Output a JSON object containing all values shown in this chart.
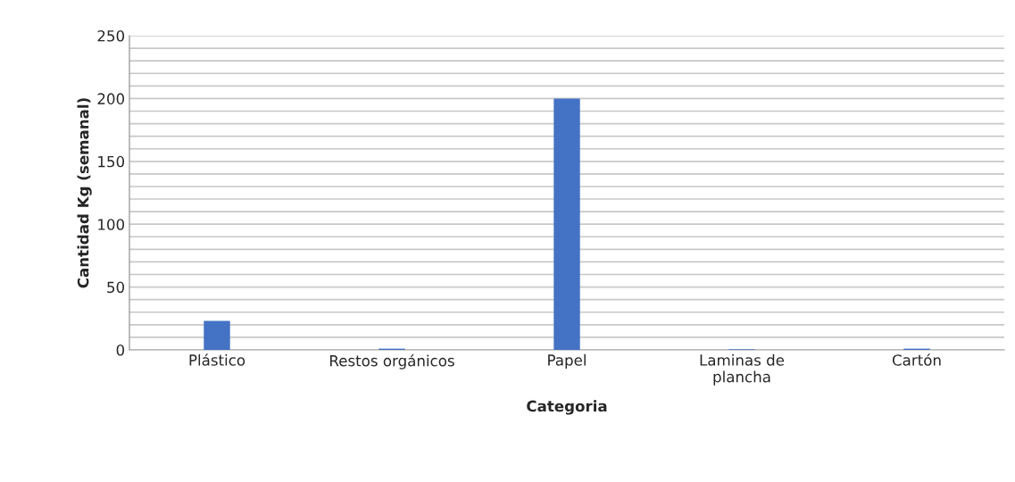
{
  "chart_data": {
    "type": "bar",
    "xlabel": "Categoria",
    "ylabel": "Cantidad Kg (semanal)",
    "categories": [
      "Plástico",
      "Restos orgánicos",
      "Papel",
      "Laminas de\nplancha",
      "Cartón"
    ],
    "values": [
      23,
      1,
      200,
      0.5,
      1
    ],
    "color": "#4472c4",
    "ylim": [
      0,
      250
    ],
    "yticks": [
      0,
      {
        "value": 10,
        "label": null
      },
      {
        "value": 20,
        "label": null
      },
      {
        "value": 30,
        "label": null
      },
      {
        "value": 40,
        "label": null
      },
      50,
      {
        "value": 60,
        "label": null
      },
      {
        "value": 70,
        "label": null
      },
      {
        "value": 80,
        "label": null
      },
      {
        "value": 90,
        "label": null
      },
      100,
      {
        "value": 110,
        "label": null
      },
      {
        "value": 120,
        "label": null
      },
      {
        "value": 130,
        "label": null
      },
      {
        "value": 140,
        "label": null
      },
      150,
      {
        "value": 160,
        "label": null
      },
      {
        "value": 170,
        "label": null
      },
      {
        "value": 180,
        "label": null
      },
      {
        "value": 190,
        "label": null
      },
      200,
      {
        "value": 210,
        "label": null
      },
      {
        "value": 220,
        "label": null
      },
      {
        "value": 230,
        "label": null
      },
      {
        "value": 240,
        "label": null
      },
      250
    ],
    "grid": "y"
  }
}
